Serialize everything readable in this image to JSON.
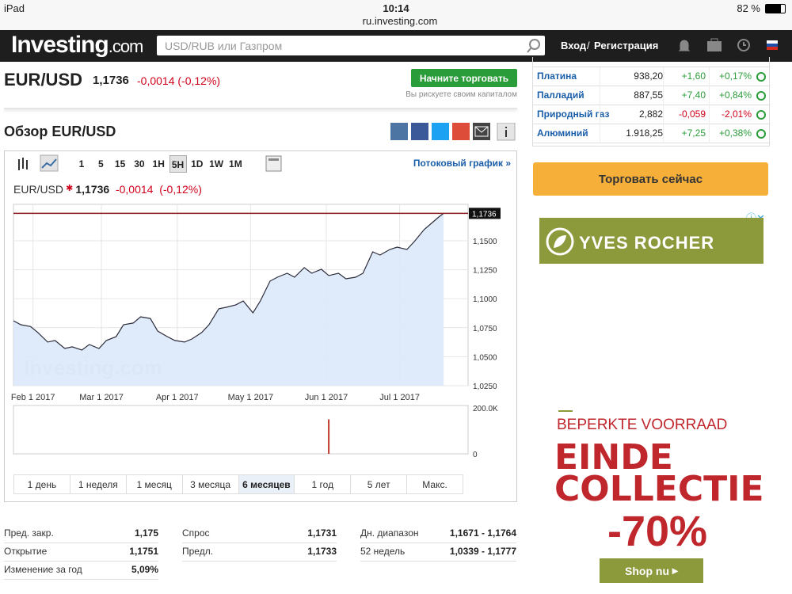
{
  "status_bar": {
    "device": "iPad",
    "time": "10:14",
    "url": "ru.investing.com",
    "battery": "82 %"
  },
  "header": {
    "logo": "Investing",
    "logo_suffix": ".com",
    "search_placeholder": "USD/RUB или Газпром",
    "login": "Вход",
    "separator": "/",
    "register": "Регистрация"
  },
  "quote": {
    "symbol": "EUR/USD",
    "price": "1,1736",
    "change": "-0,0014 (-0,12%)",
    "trade_button": "Начните торговать",
    "risk_note": "Вы рискуете своим капиталом"
  },
  "overview_title": "Обзор EUR/USD",
  "chart_toolbar": {
    "intervals": [
      "1",
      "5",
      "15",
      "30",
      "1H",
      "5H",
      "1D",
      "1W",
      "1M"
    ],
    "active": "5H",
    "streaming": "Потоковый график »"
  },
  "chart_data": [
    {
      "type": "line",
      "legend_change": "-0,0014",
      "legend_change_pct": "(-0,12%)",
      "watermark": "Investing.com",
      "last_price": {
        "value": 1.1736,
        "label": "1,1736"
      },
      "xlim": [
        "2017-01-24",
        "2017-07-29"
      ],
      "xticks": [
        {
          "value": "2017-02-01",
          "label": "Feb 1 2017"
        },
        {
          "value": "2017-03-01",
          "label": "Mar 1 2017"
        },
        {
          "value": "2017-04-01",
          "label": "Apr 1 2017"
        },
        {
          "value": "2017-05-01",
          "label": "May 1 2017"
        },
        {
          "value": "2017-06-01",
          "label": "Jun 1 2017"
        },
        {
          "value": "2017-07-01",
          "label": "Jul 1 2017"
        }
      ],
      "ylim": [
        1.025,
        1.1814
      ],
      "yticks": [
        {
          "value": 1.15,
          "label": "1,1500"
        },
        {
          "value": 1.125,
          "label": "1,1250"
        },
        {
          "value": 1.1,
          "label": "1,1000"
        },
        {
          "value": 1.075,
          "label": "1,0750"
        },
        {
          "value": 1.05,
          "label": "1,0500"
        },
        {
          "value": 1.025,
          "label": "1,0250"
        }
      ],
      "grid": true,
      "series": [
        {
          "name": "EUR/USD",
          "color": "#2b2b3a",
          "fill": "#dce9f9",
          "x": [
            "2017-01-24",
            "2017-01-27",
            "2017-01-31",
            "2017-02-03",
            "2017-02-07",
            "2017-02-10",
            "2017-02-14",
            "2017-02-17",
            "2017-02-21",
            "2017-02-24",
            "2017-02-28",
            "2017-03-03",
            "2017-03-07",
            "2017-03-10",
            "2017-03-14",
            "2017-03-17",
            "2017-03-21",
            "2017-03-24",
            "2017-03-28",
            "2017-03-31",
            "2017-04-04",
            "2017-04-07",
            "2017-04-11",
            "2017-04-14",
            "2017-04-18",
            "2017-04-21",
            "2017-04-25",
            "2017-04-28",
            "2017-05-02",
            "2017-05-05",
            "2017-05-09",
            "2017-05-12",
            "2017-05-16",
            "2017-05-19",
            "2017-05-23",
            "2017-05-26",
            "2017-05-30",
            "2017-06-02",
            "2017-06-06",
            "2017-06-09",
            "2017-06-13",
            "2017-06-16",
            "2017-06-20",
            "2017-06-23",
            "2017-06-27",
            "2017-06-30",
            "2017-07-04",
            "2017-07-07",
            "2017-07-11",
            "2017-07-14",
            "2017-07-17",
            "2017-07-19"
          ],
          "values": [
            1.081,
            1.0776,
            1.076,
            1.0708,
            1.0626,
            1.064,
            1.0571,
            1.0585,
            1.0557,
            1.0605,
            1.0571,
            1.064,
            1.0673,
            1.0776,
            1.079,
            1.0844,
            1.083,
            1.0721,
            1.0673,
            1.064,
            1.0626,
            1.0653,
            1.0708,
            1.0776,
            1.0913,
            1.0926,
            1.0947,
            1.0981,
            1.0878,
            1.0981,
            1.1152,
            1.1186,
            1.122,
            1.1186,
            1.1268,
            1.122,
            1.1254,
            1.12,
            1.122,
            1.1172,
            1.1186,
            1.122,
            1.1404,
            1.1377,
            1.1425,
            1.1445,
            1.1425,
            1.1493,
            1.1596,
            1.165,
            1.1705,
            1.1736
          ]
        }
      ]
    },
    {
      "type": "bar",
      "xlim": [
        "2017-01-24",
        "2017-07-29"
      ],
      "ylim": [
        0,
        210000
      ],
      "yticks": [
        {
          "value": 200000,
          "label": "200.0K"
        },
        0
      ],
      "series": [
        {
          "color": "#c0392b",
          "x": [
            "2017-06-02"
          ],
          "values": [
            150000
          ]
        }
      ]
    }
  ],
  "ranges": {
    "buttons": [
      "1 день",
      "1 неделя",
      "1 месяц",
      "3 месяца",
      "6 месяцев",
      "1 год",
      "5 лет",
      "Макс."
    ],
    "active": "6 месяцев"
  },
  "stats": [
    [
      {
        "label": "Пред. закр.",
        "value": "1,175"
      },
      {
        "label": "Открытие",
        "value": "1,1751"
      },
      {
        "label": "Изменение за год",
        "value": "5,09%"
      }
    ],
    [
      {
        "label": "Спрос",
        "value": "1,1731"
      },
      {
        "label": "Предл.",
        "value": "1,1733"
      }
    ],
    [
      {
        "label": "Дн. диапазон",
        "value": "1,1671 - 1,1764"
      },
      {
        "label": "52 недель",
        "value": "1,0339 - 1,1777"
      }
    ]
  ],
  "commodities": [
    {
      "name": "Платина",
      "price": "938,20",
      "change": "+1,60",
      "pct": "+0,17%"
    },
    {
      "name": "Палладий",
      "price": "887,55",
      "change": "+7,40",
      "pct": "+0,84%"
    },
    {
      "name": "Природный газ",
      "price": "2,882",
      "change": "-0,059",
      "pct": "-2,01%"
    },
    {
      "name": "Алюминий",
      "price": "1.918,25",
      "change": "+7,25",
      "pct": "+0,38%"
    }
  ],
  "trade_now": "Торговать сейчас",
  "ad": {
    "brand": "YVES ROCHER",
    "headline": "BEPERKTE VOORRAAD",
    "line1": "EINDE",
    "line2": "COLLECTIE",
    "discount": "-70%",
    "button": "Shop nu"
  }
}
